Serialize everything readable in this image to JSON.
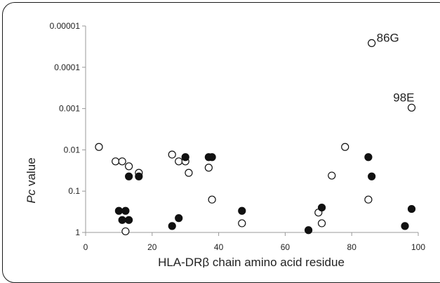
{
  "chart_data": {
    "type": "scatter",
    "xlabel": "HLA-DRβ chain amino acid residue",
    "ylabel_italic": "Pc",
    "ylabel_rest": " value",
    "xlim": [
      0,
      100
    ],
    "ylim": [
      1,
      1e-05
    ],
    "y_scale": "log-reversed",
    "x_ticks": [
      "0",
      "20",
      "40",
      "60",
      "80",
      "100"
    ],
    "y_ticks": [
      "0.00001",
      "0.0001",
      "0.001",
      "0.01",
      "0.1",
      "1"
    ],
    "grid": false,
    "series": [
      {
        "marker": "open-circle",
        "points": [
          {
            "x": 4,
            "y": 0.0085
          },
          {
            "x": 9,
            "y": 0.019
          },
          {
            "x": 11,
            "y": 0.019
          },
          {
            "x": 13,
            "y": 0.025
          },
          {
            "x": 16,
            "y": 0.036
          },
          {
            "x": 12,
            "y": 0.94
          },
          {
            "x": 26,
            "y": 0.013
          },
          {
            "x": 28,
            "y": 0.019
          },
          {
            "x": 30,
            "y": 0.019
          },
          {
            "x": 31,
            "y": 0.036
          },
          {
            "x": 37,
            "y": 0.027
          },
          {
            "x": 38,
            "y": 0.16
          },
          {
            "x": 47,
            "y": 0.6
          },
          {
            "x": 70,
            "y": 0.33
          },
          {
            "x": 71,
            "y": 0.6
          },
          {
            "x": 74,
            "y": 0.042
          },
          {
            "x": 78,
            "y": 0.0085
          },
          {
            "x": 85,
            "y": 0.16
          },
          {
            "x": 86,
            "y": 2.6e-05
          },
          {
            "x": 98,
            "y": 0.00095
          }
        ]
      },
      {
        "marker": "filled-circle",
        "points": [
          {
            "x": 10,
            "y": 0.3
          },
          {
            "x": 12,
            "y": 0.3
          },
          {
            "x": 11,
            "y": 0.5
          },
          {
            "x": 13,
            "y": 0.5
          },
          {
            "x": 13,
            "y": 0.044
          },
          {
            "x": 16,
            "y": 0.044
          },
          {
            "x": 26,
            "y": 0.7
          },
          {
            "x": 28,
            "y": 0.45
          },
          {
            "x": 30,
            "y": 0.015
          },
          {
            "x": 37,
            "y": 0.015
          },
          {
            "x": 38,
            "y": 0.015
          },
          {
            "x": 47,
            "y": 0.3
          },
          {
            "x": 67,
            "y": 0.88
          },
          {
            "x": 71,
            "y": 0.25
          },
          {
            "x": 85,
            "y": 0.015
          },
          {
            "x": 86,
            "y": 0.044
          },
          {
            "x": 96,
            "y": 0.7
          },
          {
            "x": 98,
            "y": 0.27
          }
        ]
      }
    ],
    "annotations": [
      {
        "text": "86G",
        "x": 86,
        "y": 2.6e-05
      },
      {
        "text": "98E",
        "x": 98,
        "y": 0.00095
      }
    ],
    "colors": {
      "marker_stroke": "#111111",
      "filled": "#111111",
      "open_fill": "#ffffff",
      "axis": "#999999"
    }
  }
}
